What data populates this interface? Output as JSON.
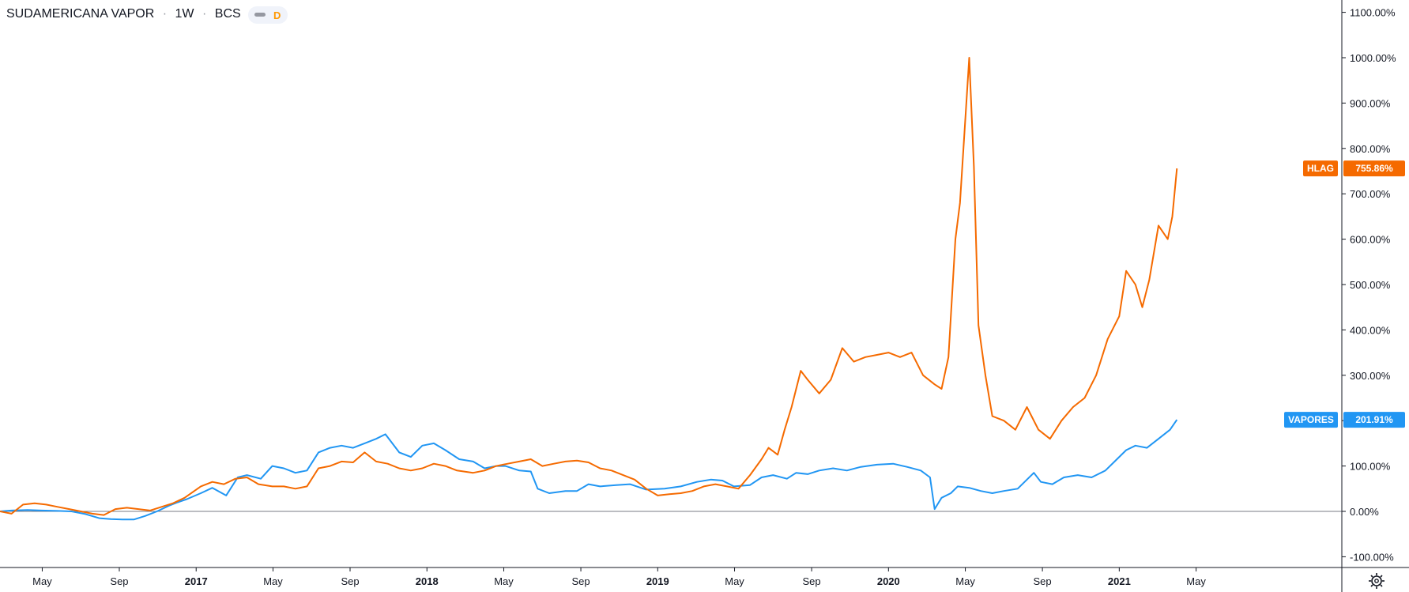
{
  "header": {
    "symbol": "SUDAMERICANA VAPOR",
    "interval": "1W",
    "exchange": "BCS",
    "separator": "·",
    "badge_letter": "D",
    "badge_color": "#ff9800"
  },
  "colors": {
    "vapores": "#2196f3",
    "hlag": "#f56a00",
    "zero_line": "#787b86",
    "axis": "#131722"
  },
  "chart_data": {
    "type": "line",
    "title": "SUDAMERICANA VAPOR · 1W · BCS",
    "ylim": [
      -110,
      1110
    ],
    "y_ticks": [
      -100,
      0,
      100,
      200,
      300,
      400,
      500,
      600,
      700,
      800,
      900,
      1000,
      1100
    ],
    "y_tick_labels": [
      "-100.00%",
      "0.00%",
      "100.00%",
      "200.00%",
      "300.00%",
      "400.00%",
      "500.00%",
      "600.00%",
      "700.00%",
      "800.00%",
      "900.00%",
      "1000.00%",
      "1100.00%"
    ],
    "x_ticks": [
      {
        "label": "May",
        "t": 2016.333,
        "bold": false
      },
      {
        "label": "Sep",
        "t": 2016.667,
        "bold": false
      },
      {
        "label": "2017",
        "t": 2017.0,
        "bold": true
      },
      {
        "label": "May",
        "t": 2017.333,
        "bold": false
      },
      {
        "label": "Sep",
        "t": 2017.667,
        "bold": false
      },
      {
        "label": "2018",
        "t": 2018.0,
        "bold": true
      },
      {
        "label": "May",
        "t": 2018.333,
        "bold": false
      },
      {
        "label": "Sep",
        "t": 2018.667,
        "bold": false
      },
      {
        "label": "2019",
        "t": 2019.0,
        "bold": true
      },
      {
        "label": "May",
        "t": 2019.333,
        "bold": false
      },
      {
        "label": "Sep",
        "t": 2019.667,
        "bold": false
      },
      {
        "label": "2020",
        "t": 2020.0,
        "bold": true
      },
      {
        "label": "May",
        "t": 2020.333,
        "bold": false
      },
      {
        "label": "Sep",
        "t": 2020.667,
        "bold": false
      },
      {
        "label": "2021",
        "t": 2021.0,
        "bold": true
      },
      {
        "label": "May",
        "t": 2021.333,
        "bold": false
      }
    ],
    "xlim": [
      2016.15,
      2021.67
    ],
    "series": [
      {
        "name": "VAPORES",
        "last_label": "201.91%",
        "points": [
          [
            2016.15,
            0
          ],
          [
            2016.2,
            2
          ],
          [
            2016.27,
            3
          ],
          [
            2016.33,
            2
          ],
          [
            2016.4,
            1
          ],
          [
            2016.46,
            0
          ],
          [
            2016.52,
            -6
          ],
          [
            2016.58,
            -15
          ],
          [
            2016.63,
            -17
          ],
          [
            2016.68,
            -18
          ],
          [
            2016.73,
            -18
          ],
          [
            2016.78,
            -10
          ],
          [
            2016.83,
            0
          ],
          [
            2016.88,
            12
          ],
          [
            2016.92,
            20
          ],
          [
            2016.96,
            27
          ],
          [
            2017.02,
            40
          ],
          [
            2017.07,
            52
          ],
          [
            2017.13,
            35
          ],
          [
            2017.18,
            75
          ],
          [
            2017.22,
            80
          ],
          [
            2017.28,
            72
          ],
          [
            2017.33,
            100
          ],
          [
            2017.38,
            95
          ],
          [
            2017.43,
            85
          ],
          [
            2017.48,
            90
          ],
          [
            2017.53,
            130
          ],
          [
            2017.58,
            140
          ],
          [
            2017.63,
            145
          ],
          [
            2017.68,
            140
          ],
          [
            2017.73,
            150
          ],
          [
            2017.78,
            160
          ],
          [
            2017.82,
            170
          ],
          [
            2017.88,
            130
          ],
          [
            2017.93,
            120
          ],
          [
            2017.98,
            145
          ],
          [
            2018.03,
            150
          ],
          [
            2018.08,
            135
          ],
          [
            2018.14,
            115
          ],
          [
            2018.2,
            110
          ],
          [
            2018.25,
            95
          ],
          [
            2018.3,
            100
          ],
          [
            2018.34,
            100
          ],
          [
            2018.4,
            90
          ],
          [
            2018.45,
            88
          ],
          [
            2018.48,
            50
          ],
          [
            2018.53,
            40
          ],
          [
            2018.6,
            45
          ],
          [
            2018.65,
            45
          ],
          [
            2018.7,
            60
          ],
          [
            2018.75,
            55
          ],
          [
            2018.82,
            58
          ],
          [
            2018.88,
            60
          ],
          [
            2018.95,
            48
          ],
          [
            2019.03,
            50
          ],
          [
            2019.1,
            55
          ],
          [
            2019.17,
            65
          ],
          [
            2019.23,
            70
          ],
          [
            2019.28,
            68
          ],
          [
            2019.33,
            55
          ],
          [
            2019.4,
            58
          ],
          [
            2019.45,
            75
          ],
          [
            2019.5,
            80
          ],
          [
            2019.56,
            72
          ],
          [
            2019.6,
            85
          ],
          [
            2019.65,
            82
          ],
          [
            2019.7,
            90
          ],
          [
            2019.76,
            95
          ],
          [
            2019.82,
            90
          ],
          [
            2019.88,
            98
          ],
          [
            2019.95,
            103
          ],
          [
            2020.02,
            105
          ],
          [
            2020.08,
            98
          ],
          [
            2020.14,
            90
          ],
          [
            2020.18,
            75
          ],
          [
            2020.2,
            5
          ],
          [
            2020.23,
            30
          ],
          [
            2020.27,
            40
          ],
          [
            2020.3,
            55
          ],
          [
            2020.35,
            52
          ],
          [
            2020.4,
            45
          ],
          [
            2020.45,
            40
          ],
          [
            2020.5,
            45
          ],
          [
            2020.56,
            50
          ],
          [
            2020.6,
            70
          ],
          [
            2020.63,
            85
          ],
          [
            2020.66,
            65
          ],
          [
            2020.71,
            60
          ],
          [
            2020.76,
            75
          ],
          [
            2020.82,
            80
          ],
          [
            2020.88,
            75
          ],
          [
            2020.94,
            90
          ],
          [
            2020.98,
            110
          ],
          [
            2021.03,
            135
          ],
          [
            2021.07,
            145
          ],
          [
            2021.12,
            140
          ],
          [
            2021.17,
            160
          ],
          [
            2021.22,
            180
          ],
          [
            2021.25,
            201.91
          ]
        ]
      },
      {
        "name": "HLAG",
        "last_label": "755.86%",
        "points": [
          [
            2016.15,
            0
          ],
          [
            2016.2,
            -5
          ],
          [
            2016.25,
            15
          ],
          [
            2016.3,
            18
          ],
          [
            2016.35,
            15
          ],
          [
            2016.4,
            10
          ],
          [
            2016.45,
            5
          ],
          [
            2016.5,
            0
          ],
          [
            2016.55,
            -5
          ],
          [
            2016.6,
            -8
          ],
          [
            2016.65,
            5
          ],
          [
            2016.7,
            8
          ],
          [
            2016.75,
            5
          ],
          [
            2016.8,
            2
          ],
          [
            2016.85,
            10
          ],
          [
            2016.9,
            18
          ],
          [
            2016.95,
            30
          ],
          [
            2017.02,
            55
          ],
          [
            2017.07,
            65
          ],
          [
            2017.12,
            60
          ],
          [
            2017.17,
            72
          ],
          [
            2017.22,
            75
          ],
          [
            2017.27,
            60
          ],
          [
            2017.33,
            55
          ],
          [
            2017.38,
            55
          ],
          [
            2017.43,
            50
          ],
          [
            2017.48,
            55
          ],
          [
            2017.53,
            95
          ],
          [
            2017.58,
            100
          ],
          [
            2017.63,
            110
          ],
          [
            2017.68,
            108
          ],
          [
            2017.73,
            130
          ],
          [
            2017.78,
            110
          ],
          [
            2017.83,
            105
          ],
          [
            2017.88,
            95
          ],
          [
            2017.93,
            90
          ],
          [
            2017.98,
            95
          ],
          [
            2018.03,
            105
          ],
          [
            2018.08,
            100
          ],
          [
            2018.13,
            90
          ],
          [
            2018.2,
            85
          ],
          [
            2018.25,
            90
          ],
          [
            2018.3,
            100
          ],
          [
            2018.35,
            105
          ],
          [
            2018.4,
            110
          ],
          [
            2018.45,
            115
          ],
          [
            2018.5,
            100
          ],
          [
            2018.55,
            105
          ],
          [
            2018.6,
            110
          ],
          [
            2018.65,
            112
          ],
          [
            2018.7,
            108
          ],
          [
            2018.75,
            95
          ],
          [
            2018.8,
            90
          ],
          [
            2018.85,
            80
          ],
          [
            2018.9,
            70
          ],
          [
            2018.95,
            50
          ],
          [
            2019.0,
            35
          ],
          [
            2019.05,
            38
          ],
          [
            2019.1,
            40
          ],
          [
            2019.15,
            45
          ],
          [
            2019.2,
            55
          ],
          [
            2019.25,
            60
          ],
          [
            2019.3,
            55
          ],
          [
            2019.35,
            50
          ],
          [
            2019.4,
            80
          ],
          [
            2019.45,
            115
          ],
          [
            2019.48,
            140
          ],
          [
            2019.52,
            125
          ],
          [
            2019.55,
            180
          ],
          [
            2019.58,
            230
          ],
          [
            2019.62,
            310
          ],
          [
            2019.65,
            290
          ],
          [
            2019.7,
            260
          ],
          [
            2019.75,
            290
          ],
          [
            2019.8,
            360
          ],
          [
            2019.85,
            330
          ],
          [
            2019.9,
            340
          ],
          [
            2019.95,
            345
          ],
          [
            2020.0,
            350
          ],
          [
            2020.05,
            340
          ],
          [
            2020.1,
            350
          ],
          [
            2020.15,
            300
          ],
          [
            2020.2,
            280
          ],
          [
            2020.23,
            270
          ],
          [
            2020.26,
            340
          ],
          [
            2020.29,
            600
          ],
          [
            2020.31,
            680
          ],
          [
            2020.35,
            1000
          ],
          [
            2020.37,
            760
          ],
          [
            2020.39,
            410
          ],
          [
            2020.42,
            300
          ],
          [
            2020.45,
            210
          ],
          [
            2020.5,
            200
          ],
          [
            2020.55,
            180
          ],
          [
            2020.6,
            230
          ],
          [
            2020.65,
            180
          ],
          [
            2020.7,
            160
          ],
          [
            2020.75,
            200
          ],
          [
            2020.8,
            230
          ],
          [
            2020.85,
            250
          ],
          [
            2020.9,
            300
          ],
          [
            2020.95,
            380
          ],
          [
            2021.0,
            430
          ],
          [
            2021.03,
            530
          ],
          [
            2021.07,
            500
          ],
          [
            2021.1,
            450
          ],
          [
            2021.13,
            510
          ],
          [
            2021.17,
            630
          ],
          [
            2021.21,
            600
          ],
          [
            2021.23,
            650
          ],
          [
            2021.25,
            755.86
          ]
        ]
      }
    ]
  }
}
